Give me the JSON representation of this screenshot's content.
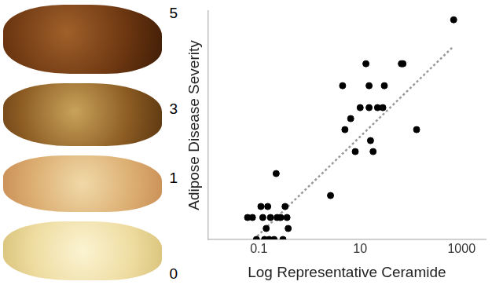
{
  "panels": {
    "severity_labels": [
      5,
      3,
      1,
      0
    ]
  },
  "chart_data": {
    "type": "scatter",
    "x_label": "Log Representative Ceramide",
    "y_label": "Adipose Disease Severity",
    "log": "x",
    "grid": false,
    "tick_labels": "x",
    "xlim": [
      0.01,
      3000
    ],
    "xticks": [
      0.1,
      10,
      1000
    ],
    "ylim": [
      0,
      5.2
    ],
    "yticks": [
      0,
      1,
      2,
      3,
      4,
      5
    ],
    "series": [
      {
        "type": "scatter",
        "marker": "circle",
        "color": "#000000",
        "x": [
          0.06,
          0.075,
          0.09,
          0.11,
          0.12,
          0.13,
          0.14,
          0.15,
          0.16,
          0.17,
          0.2,
          0.22,
          0.23,
          0.27,
          0.3,
          0.33,
          0.36,
          0.38,
          2.6,
          4.5,
          5,
          6.5,
          8,
          10,
          13,
          15,
          16,
          18,
          15,
          22,
          28,
          30,
          65,
          70,
          130,
          700
        ],
        "values": [
          0.5,
          0.5,
          0,
          0.75,
          0.5,
          0,
          0.25,
          0.75,
          0,
          0.5,
          0,
          1.5,
          0.5,
          0.5,
          0,
          0.75,
          0.5,
          0.25,
          1,
          3.5,
          2.5,
          2.75,
          2,
          3,
          4,
          3.5,
          2.25,
          2,
          3,
          3,
          3,
          3.5,
          4,
          4,
          2.5,
          5
        ]
      },
      {
        "type": "line",
        "line_style": "dotted",
        "color": "#999999",
        "x": [
          0.08,
          700
        ],
        "values": [
          0,
          4.4
        ]
      }
    ]
  }
}
